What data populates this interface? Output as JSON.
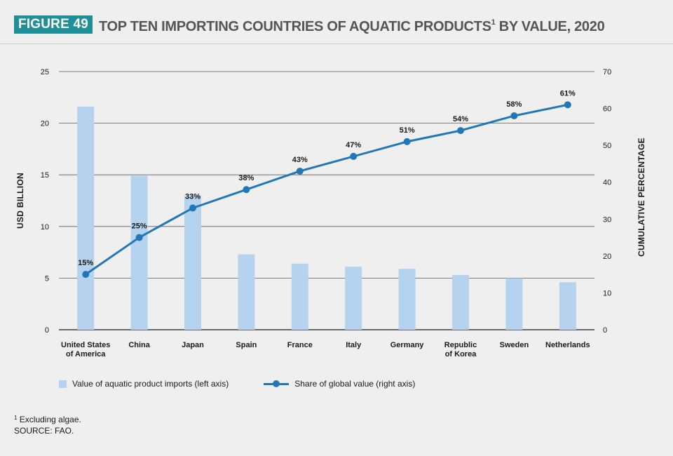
{
  "header": {
    "badge": "FIGURE 49",
    "title_main": "TOP TEN IMPORTING COUNTRIES OF AQUATIC PRODUCTS",
    "title_sup": "1",
    "title_tail": " BY VALUE, 2020"
  },
  "chart_data": {
    "type": "bar",
    "categories": [
      [
        "United States",
        "of America"
      ],
      [
        "China"
      ],
      [
        "Japan"
      ],
      [
        "Spain"
      ],
      [
        "France"
      ],
      [
        "Italy"
      ],
      [
        "Germany"
      ],
      [
        "Republic",
        "of Korea"
      ],
      [
        "Sweden"
      ],
      [
        "Netherlands"
      ]
    ],
    "series": [
      {
        "name": "Value of aquatic product imports (left axis)",
        "type": "bar",
        "axis": "left",
        "color": "#b5d3ef",
        "values": [
          21.6,
          14.9,
          13.0,
          7.3,
          6.4,
          6.1,
          5.9,
          5.3,
          5.0,
          4.6
        ]
      },
      {
        "name": "Share of global value (right axis)",
        "type": "line",
        "axis": "right",
        "color": "#2277b7",
        "values": [
          15,
          25,
          33,
          38,
          43,
          47,
          51,
          54,
          58,
          61
        ],
        "labels": [
          "15%",
          "25%",
          "33%",
          "38%",
          "43%",
          "47%",
          "51%",
          "54%",
          "58%",
          "61%"
        ]
      }
    ],
    "ylabel_left": "USD BILLION",
    "ylabel_right": "CUMULATIVE PERCENTAGE",
    "ylim_left": [
      0,
      25
    ],
    "yticks_left": [
      0,
      5,
      10,
      15,
      20,
      25
    ],
    "ylim_right": [
      0,
      70
    ],
    "yticks_right": [
      0,
      10,
      20,
      30,
      40,
      50,
      60,
      70
    ],
    "grid": true,
    "legend_position": "bottom-left"
  },
  "legend": {
    "bar_label": "Value of aquatic product imports (left axis)",
    "line_label": "Share of global value (right axis)"
  },
  "footnote": {
    "marker": "1",
    "note": " Excluding algae.",
    "source": "SOURCE: FAO."
  }
}
